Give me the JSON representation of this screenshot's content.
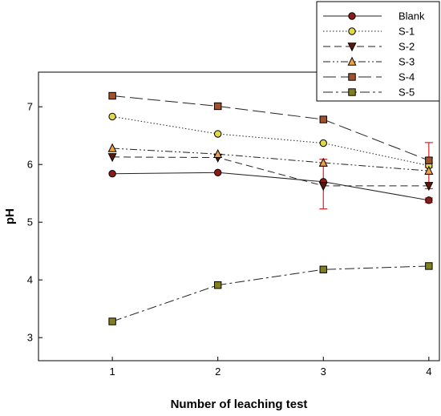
{
  "chart_data": {
    "type": "line",
    "xlabel": "Number of leaching test",
    "ylabel": "pH",
    "x": [
      1,
      2,
      3,
      4
    ],
    "xlim": [
      0.3,
      4.1
    ],
    "ylim": [
      2.6,
      7.6
    ],
    "xticks": [
      "1",
      "2",
      "3",
      "4"
    ],
    "yticks": [
      "3",
      "4",
      "5",
      "6",
      "7"
    ],
    "grid": false,
    "legend_position": "top-right",
    "series": [
      {
        "name": "Blank",
        "values": [
          5.84,
          5.86,
          5.7,
          5.38
        ],
        "marker": "circle",
        "marker_color": "#8b1a1a",
        "dash": "solid"
      },
      {
        "name": "S-1",
        "values": [
          6.83,
          6.53,
          6.37,
          5.98
        ],
        "marker": "circle",
        "marker_color": "#e0d84a",
        "dash": "dotted"
      },
      {
        "name": "S-2",
        "values": [
          6.13,
          6.12,
          5.63,
          5.63
        ],
        "marker": "triangle-down",
        "marker_color": "#5a1a0a",
        "dash": "dashed"
      },
      {
        "name": "S-3",
        "values": [
          6.28,
          6.18,
          6.03,
          5.89
        ],
        "marker": "triangle-up",
        "marker_color": "#f0a040",
        "dash": "dash-dot-dot"
      },
      {
        "name": "S-4",
        "values": [
          7.19,
          7.01,
          6.78,
          6.07
        ],
        "marker": "square",
        "marker_color": "#a0522d",
        "dash": "long-dash"
      },
      {
        "name": "S-5",
        "values": [
          3.28,
          3.91,
          4.18,
          4.24
        ],
        "marker": "square",
        "marker_color": "#808020",
        "dash": "dash-dot"
      }
    ],
    "error_bars": [
      {
        "x": 2,
        "y": 7.01,
        "err": 0.05
      },
      {
        "x": 3,
        "y": 5.63,
        "err": 0.4
      },
      {
        "x": 3,
        "y": 6.03,
        "err": 0.06
      },
      {
        "x": 4,
        "y": 5.38,
        "err": 0.04
      },
      {
        "x": 4,
        "y": 5.98,
        "err": 0.4
      },
      {
        "x": 4,
        "y": 6.07,
        "err": 0.05
      },
      {
        "x": 4,
        "y": 5.89,
        "err": 0.06
      }
    ],
    "error_bar_color": "#dd2222"
  }
}
